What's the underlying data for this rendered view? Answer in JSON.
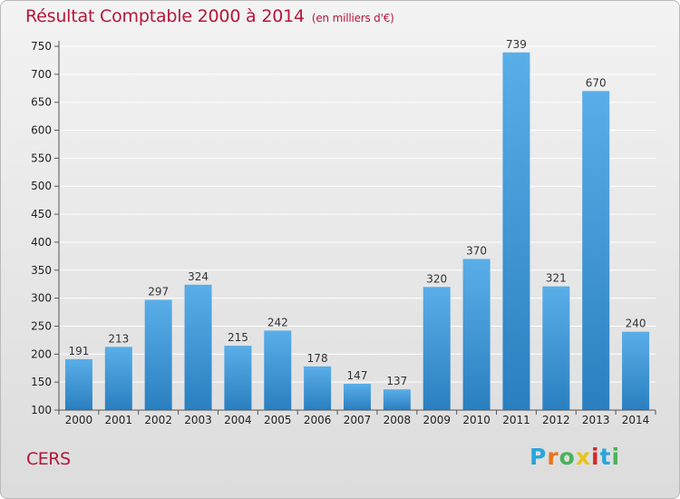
{
  "header": {
    "title": "Résultat Comptable 2000 à 2014",
    "subtitle": "(en milliers d'€)"
  },
  "commune_label": "CERS",
  "logo": {
    "letters": [
      "P",
      "r",
      "o",
      "x",
      "i",
      "t",
      "i"
    ],
    "colors": [
      "#2aa6dc",
      "#e8751a",
      "#49b35b",
      "#e8c31a",
      "#d7272e",
      "#2aa6dc",
      "#49b35b"
    ]
  },
  "chart_data": {
    "type": "bar",
    "title": "Résultat Comptable 2000 à 2014",
    "subtitle": "(en milliers d'€)",
    "categories": [
      "2000",
      "2001",
      "2002",
      "2003",
      "2004",
      "2005",
      "2006",
      "2007",
      "2008",
      "2009",
      "2010",
      "2011",
      "2012",
      "2013",
      "2014"
    ],
    "values": [
      191,
      213,
      297,
      324,
      215,
      242,
      178,
      147,
      137,
      320,
      370,
      739,
      321,
      670,
      240
    ],
    "ylim": [
      100,
      750
    ],
    "yticks": [
      100,
      150,
      200,
      250,
      300,
      350,
      400,
      450,
      500,
      550,
      600,
      650,
      700,
      750
    ],
    "grid": true,
    "xlabel": "",
    "ylabel": "",
    "colors": {
      "bar_top": "#5aaee8",
      "bar_bottom": "#2a7fc0",
      "grid": "#ffffff",
      "axis": "#555555"
    }
  }
}
